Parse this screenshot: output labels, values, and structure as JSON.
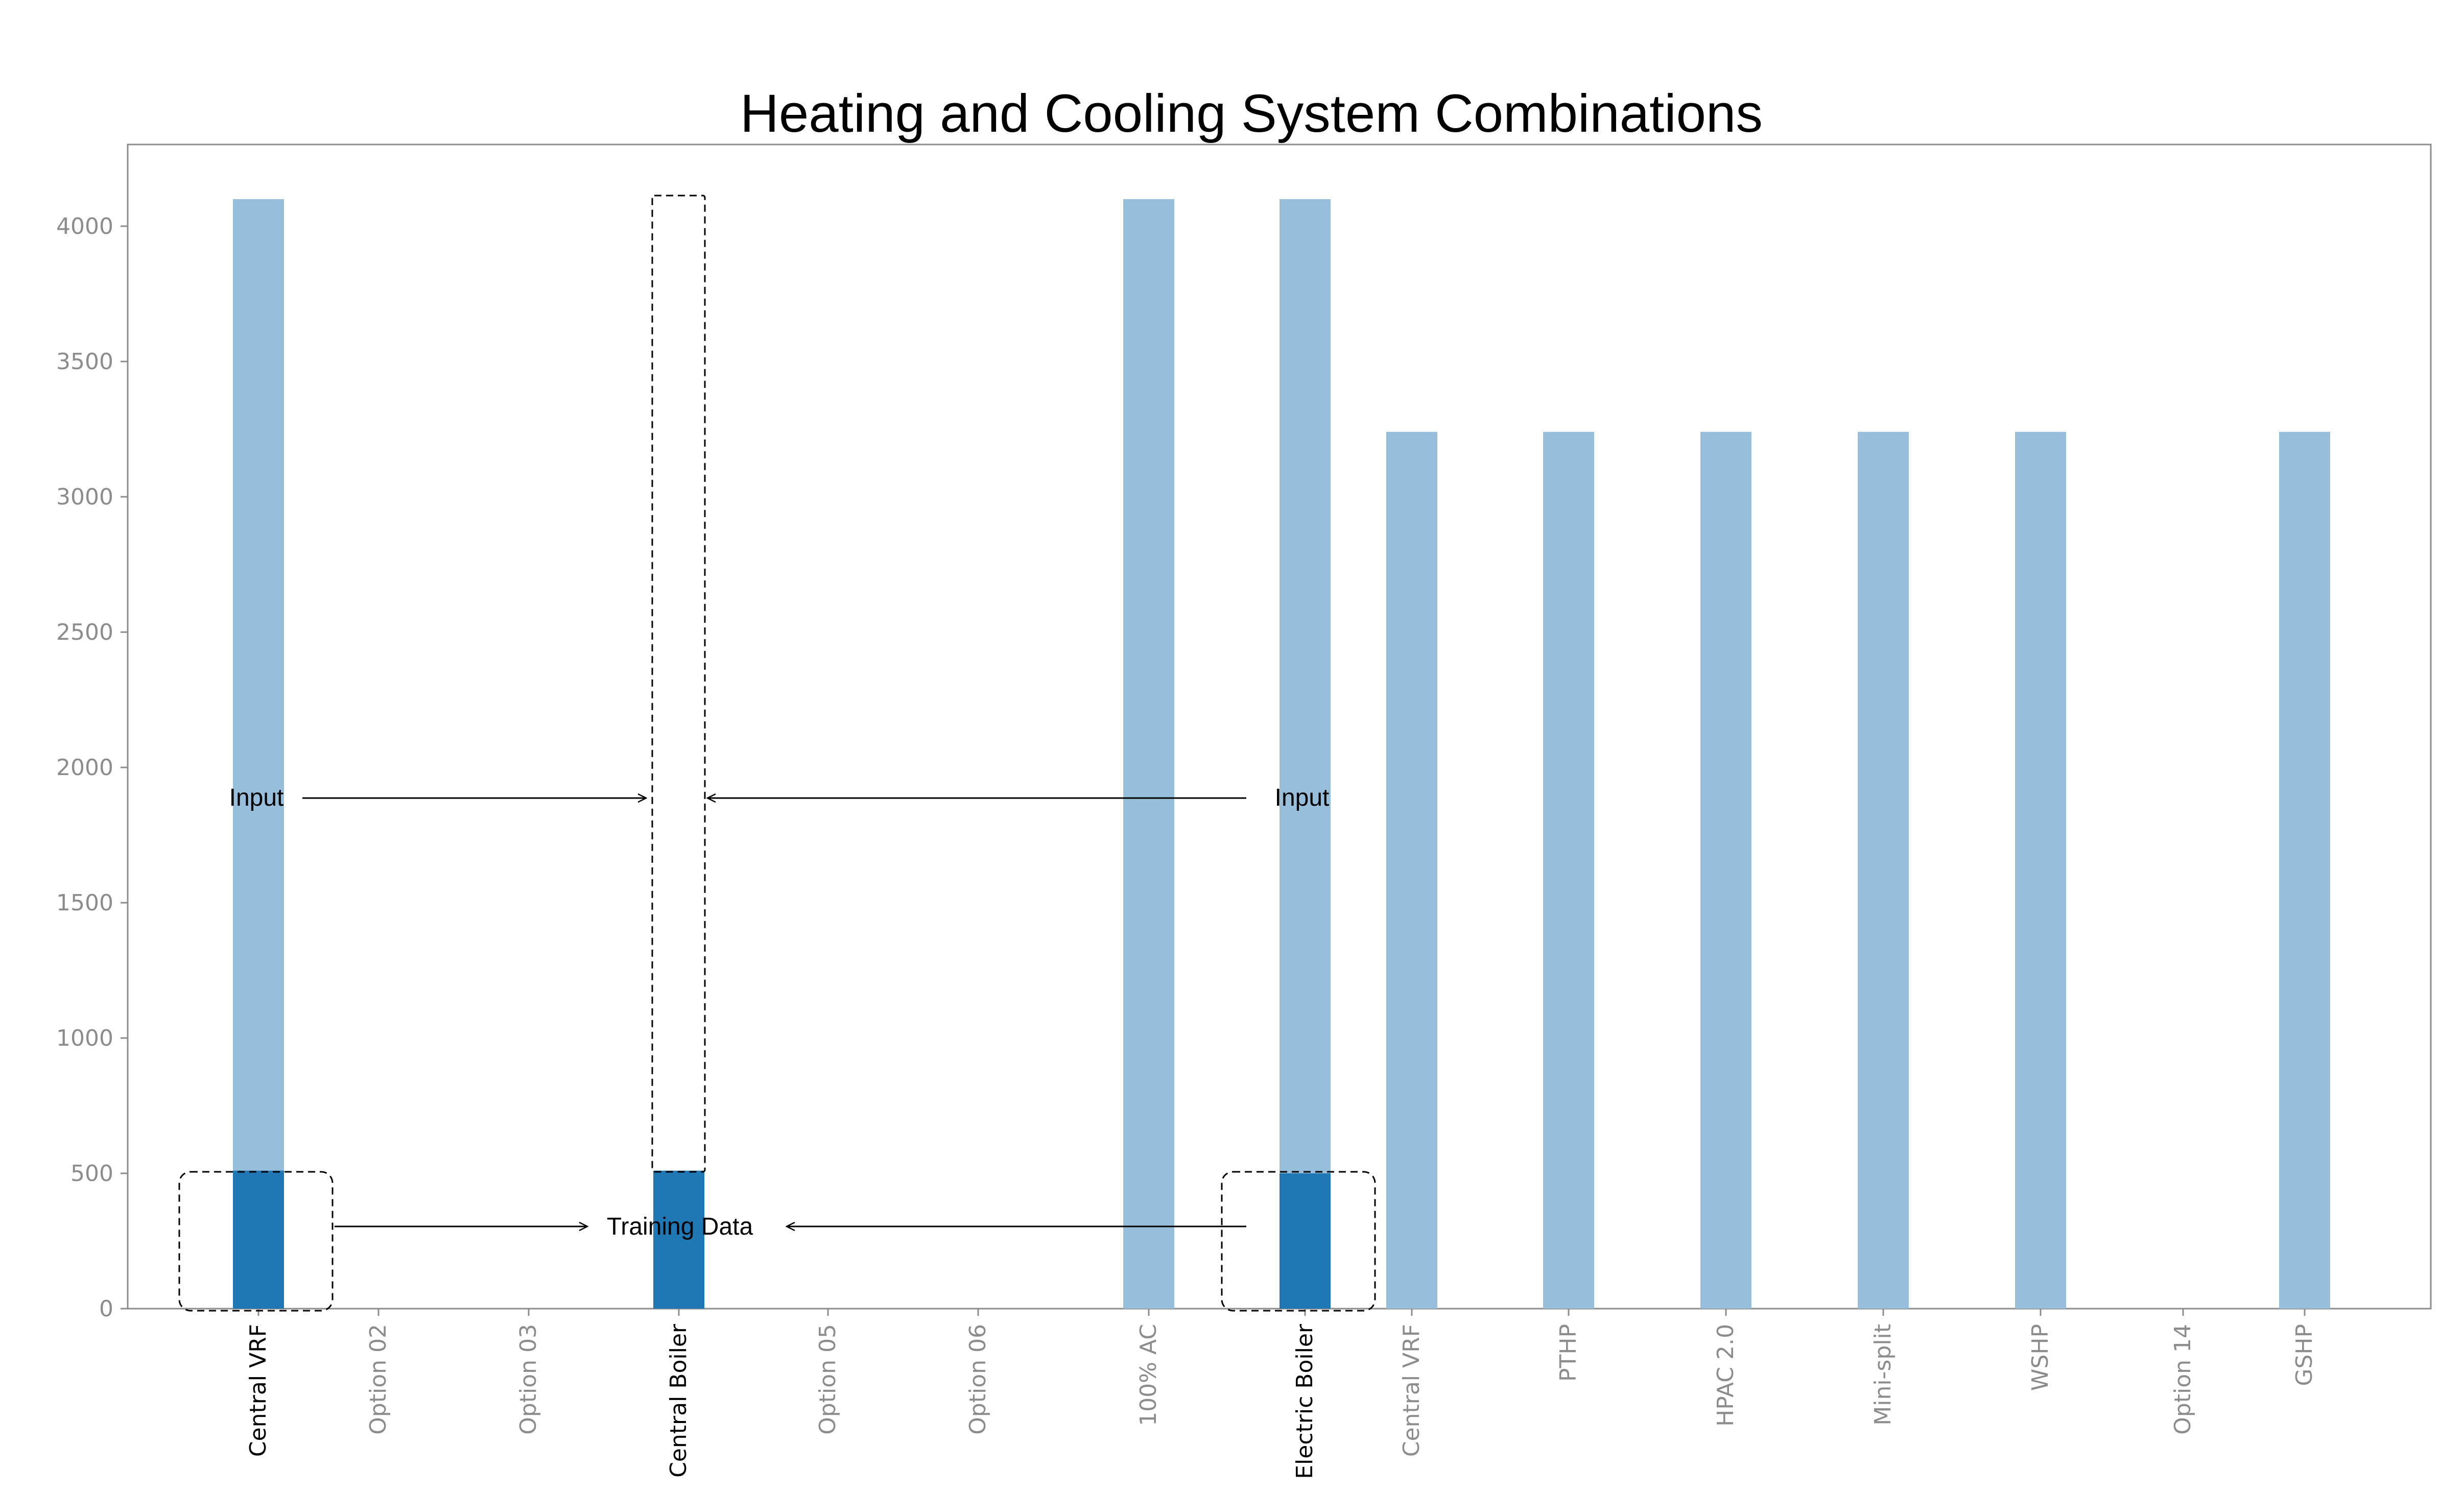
{
  "chart_data": {
    "type": "bar",
    "title": "Heating and Cooling System Combinations",
    "xlabel": "",
    "ylabel": "",
    "ylim": [
      0,
      4300
    ],
    "yticks": [
      0,
      500,
      1000,
      1500,
      2000,
      2500,
      3000,
      3500,
      4000
    ],
    "grid": false,
    "categories": [
      "Central VRF",
      "Option 02",
      "Option 03",
      "Central Boiler",
      "Option 05",
      "Option 06",
      "100% AC",
      "Electric Boiler",
      "Central VRF",
      "PTHP",
      "HPAC 2.0",
      "Mini-split",
      "WSHP",
      "Option 14",
      "GSHP"
    ],
    "highlighted_categories": [
      "Central VRF",
      "Central Boiler",
      "Electric Boiler"
    ],
    "series": [
      {
        "color": "#97bfdc",
        "values": [
          4100,
          0,
          0,
          0,
          0,
          0,
          4100,
          4100,
          3240,
          3240,
          3240,
          3240,
          3240,
          0,
          3240
        ]
      },
      {
        "color": "#1f77b4",
        "values": [
          510,
          0,
          0,
          510,
          0,
          0,
          0,
          500,
          0,
          0,
          0,
          0,
          0,
          0,
          0
        ]
      }
    ],
    "annotations": [
      {
        "text": "Input",
        "from_category": "Central VRF",
        "to_category": "Central Boiler"
      },
      {
        "text": "Input",
        "from_category": "Electric Boiler",
        "to_category": "Central Boiler"
      },
      {
        "text": "Training Data",
        "from_category": "Central VRF",
        "to_category": "Central Boiler"
      },
      {
        "text": "Training Data",
        "from_category": "Electric Boiler",
        "to_category": "Central Boiler"
      }
    ],
    "colors": {
      "light_bar": "#97bfdc",
      "dark_bar": "#1f77b4",
      "axis": "#8c8c8c",
      "highlight_label": "#000000"
    }
  }
}
